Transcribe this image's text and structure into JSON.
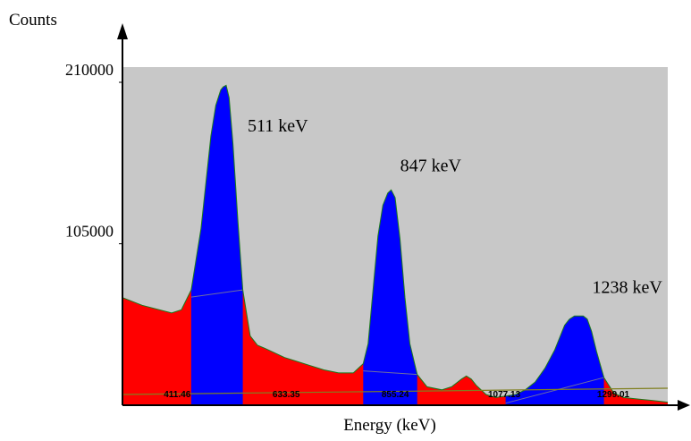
{
  "chart_data": {
    "type": "area",
    "title": "",
    "xlabel": "Energy (keV)",
    "ylabel": "Counts",
    "ylim": [
      0,
      210000
    ],
    "xlim": [
      300,
      1410
    ],
    "yticks": [
      {
        "value": 210000,
        "label": "210000"
      },
      {
        "value": 105000,
        "label": "105000"
      }
    ],
    "xticks": [
      {
        "value": 411.46,
        "label": "411.46"
      },
      {
        "value": 633.35,
        "label": "633.35"
      },
      {
        "value": 855.24,
        "label": "855.24"
      },
      {
        "value": 1077.13,
        "label": "1077.13"
      },
      {
        "value": 1299.01,
        "label": "1299.01"
      }
    ],
    "peak_labels": [
      {
        "text": "511 keV",
        "x": 511,
        "y": 178000
      },
      {
        "text": "847 keV",
        "x": 847,
        "y": 152000
      },
      {
        "text": "1238 keV",
        "x": 1238,
        "y": 73000
      }
    ],
    "colors": {
      "plot_background": "#c8c8c8",
      "spectrum": "#ff0000",
      "peak_fill": "#0000ff",
      "outline": "#1a7a1a",
      "baseline": "#808020"
    },
    "spectrum": {
      "x": [
        300,
        340,
        400,
        420,
        440,
        460,
        470,
        480,
        490,
        500,
        505,
        511,
        517,
        525,
        535,
        545,
        560,
        575,
        590,
        610,
        630,
        650,
        680,
        710,
        740,
        770,
        790,
        800,
        810,
        820,
        830,
        840,
        847,
        855,
        865,
        875,
        885,
        900,
        920,
        950,
        970,
        990,
        1000,
        1010,
        1020,
        1040,
        1060,
        1080,
        1100,
        1120,
        1140,
        1160,
        1180,
        1200,
        1210,
        1220,
        1230,
        1238,
        1246,
        1255,
        1265,
        1280,
        1300,
        1320,
        1350,
        1380,
        1410
      ],
      "y": [
        70000,
        65000,
        60000,
        62000,
        75000,
        115000,
        145000,
        175000,
        195000,
        205000,
        207000,
        208000,
        200000,
        170000,
        120000,
        75000,
        45000,
        39000,
        37000,
        34000,
        31000,
        29000,
        26000,
        23000,
        21000,
        21000,
        27000,
        40000,
        75000,
        110000,
        130000,
        138000,
        140000,
        135000,
        108000,
        70000,
        40000,
        20000,
        12000,
        10000,
        12000,
        17000,
        19000,
        17000,
        13000,
        7000,
        5000,
        6000,
        7000,
        10000,
        15000,
        24000,
        36000,
        52000,
        56000,
        58000,
        58000,
        58000,
        56000,
        48000,
        35000,
        18000,
        8000,
        5000,
        4000,
        3000,
        2000
      ]
    },
    "peak_regions": [
      {
        "name": "511 keV",
        "x_start": 440,
        "x_end": 545
      },
      {
        "name": "847 keV",
        "x_start": 790,
        "x_end": 900
      },
      {
        "name": "1238 keV",
        "x_start": 1080,
        "x_end": 1280
      }
    ]
  }
}
